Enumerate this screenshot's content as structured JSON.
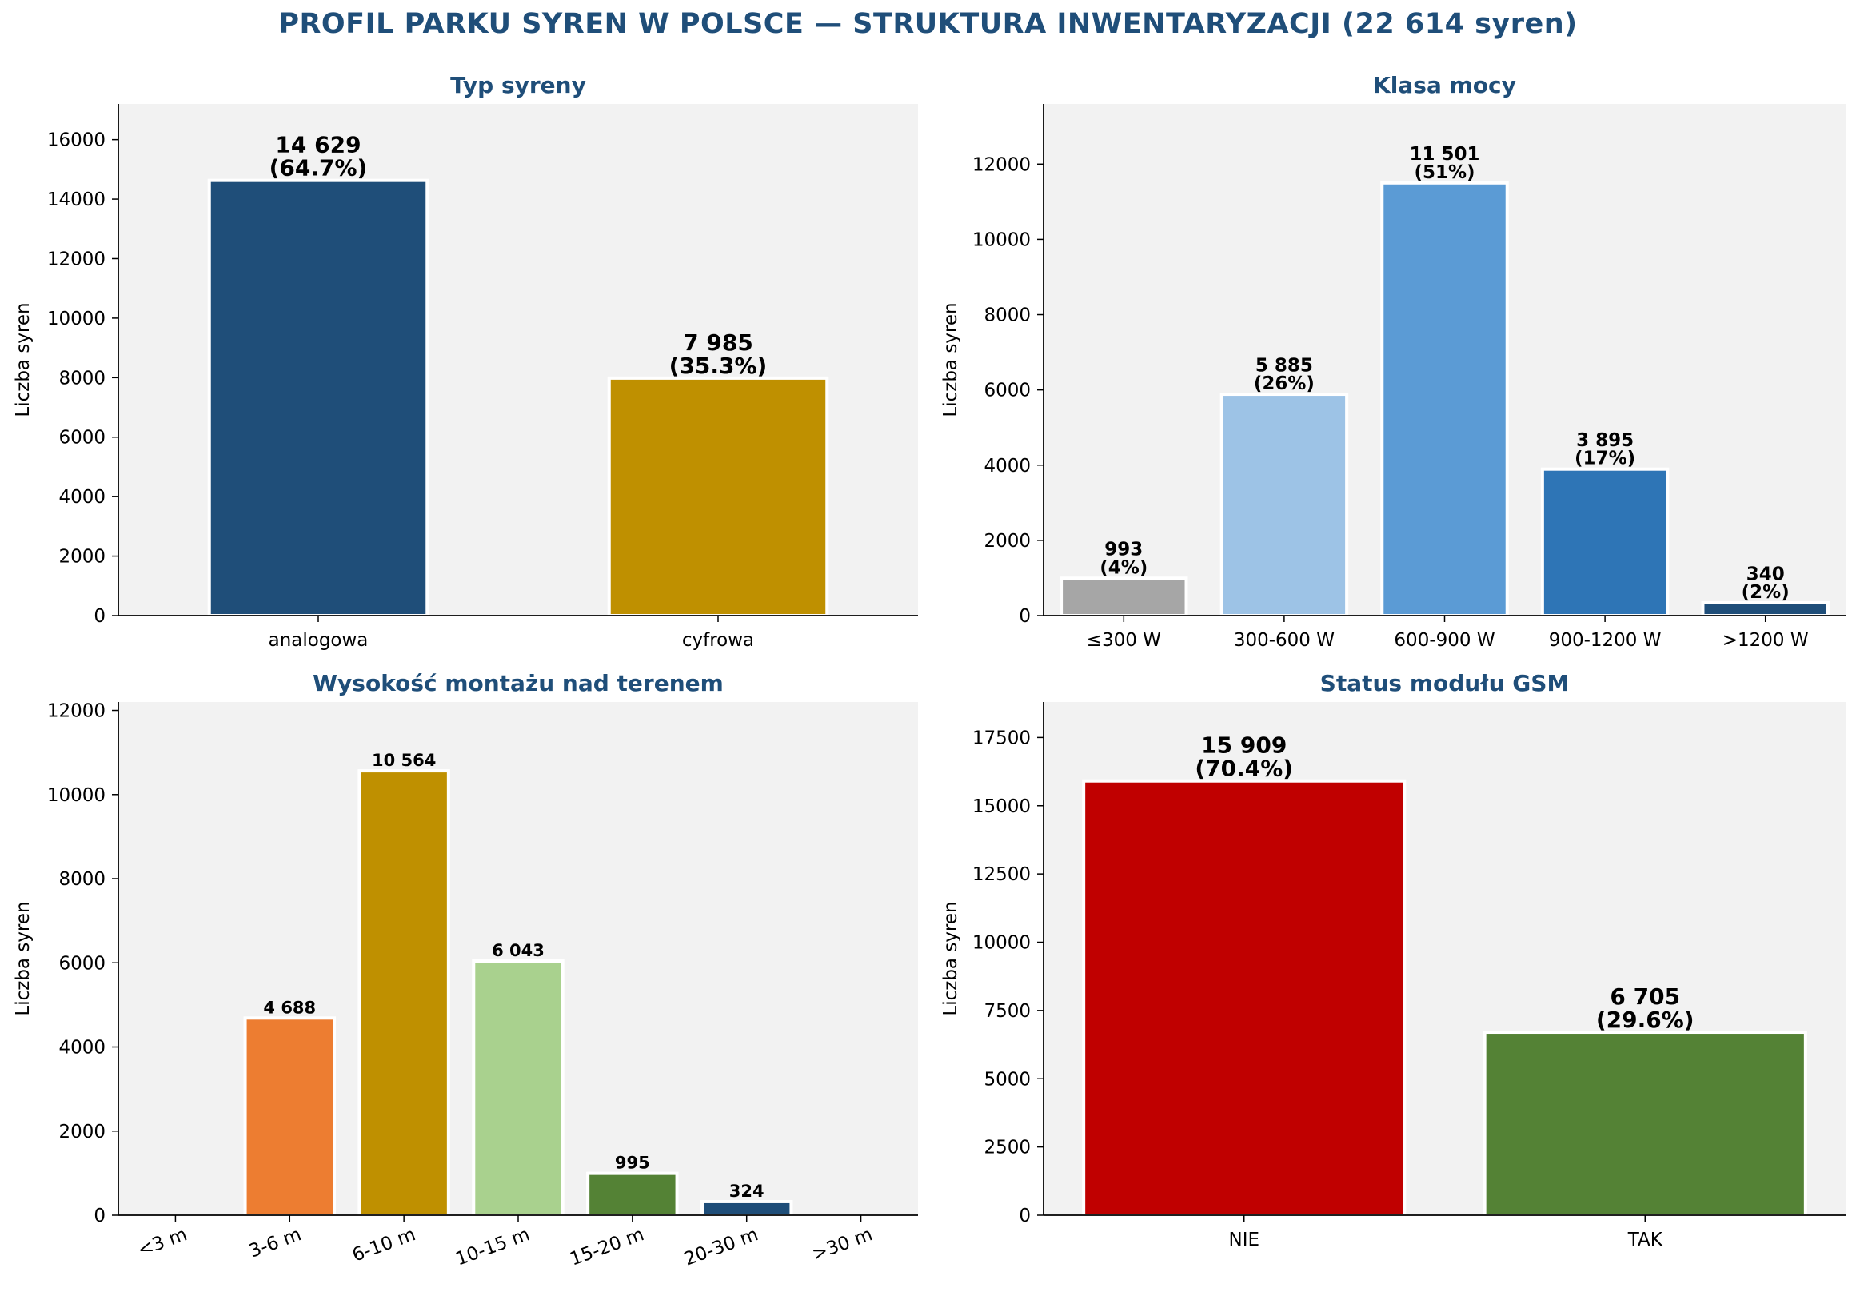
{
  "title": "PROFIL PARKU SYREN W POLSCE — STRUKTURA INWENTARYZACJI (22 614 syren)",
  "chart_data": [
    {
      "type": "bar",
      "title": "Typ syreny",
      "ylabel": "Liczba syren",
      "categories": [
        "analogowa",
        "cyfrowa"
      ],
      "values": [
        14629,
        7985
      ],
      "value_labels": [
        "14 629",
        "7 985"
      ],
      "percent_labels": [
        "(64.7%)",
        "(35.3%)"
      ],
      "colors": [
        "#1f4e79",
        "#bf9000"
      ],
      "ylim": [
        0,
        17200
      ],
      "yticks": [
        0,
        2000,
        4000,
        6000,
        8000,
        10000,
        12000,
        14000,
        16000
      ],
      "grid": false
    },
    {
      "type": "bar",
      "title": "Klasa mocy",
      "ylabel": "Liczba syren",
      "categories": [
        "≤300 W",
        "300-600 W",
        "600-900 W",
        "900-1200 W",
        ">1200 W"
      ],
      "values": [
        993,
        5885,
        11501,
        3895,
        340
      ],
      "value_labels": [
        "993",
        "5 885",
        "11 501",
        "3 895",
        "340"
      ],
      "percent_labels": [
        "(4%)",
        "(26%)",
        "(51%)",
        "(17%)",
        "(2%)"
      ],
      "colors": [
        "#a6a6a6",
        "#9dc3e6",
        "#5b9bd5",
        "#2e75b6",
        "#1f4e79"
      ],
      "ylim": [
        0,
        13600
      ],
      "yticks": [
        0,
        2000,
        4000,
        6000,
        8000,
        10000,
        12000
      ],
      "grid": false
    },
    {
      "type": "bar",
      "title": "Wysokość montażu nad terenem",
      "ylabel": "Liczba syren",
      "categories": [
        "<3 m",
        "3-6 m",
        "6-10 m",
        "10-15 m",
        "15-20 m",
        "20-30 m",
        ">30 m"
      ],
      "values": [
        0,
        4688,
        10564,
        6043,
        995,
        324,
        0
      ],
      "value_labels": [
        "",
        "4 688",
        "10 564",
        "6 043",
        "995",
        "324",
        ""
      ],
      "percent_labels": [
        "",
        "",
        "",
        "",
        "",
        "",
        ""
      ],
      "colors": [
        "#c00000",
        "#ed7d31",
        "#bf9000",
        "#a9d18e",
        "#548235",
        "#1f4e79",
        "#7030a0"
      ],
      "ylim": [
        0,
        12200
      ],
      "yticks": [
        0,
        2000,
        4000,
        6000,
        8000,
        10000,
        12000
      ],
      "grid": false
    },
    {
      "type": "bar",
      "title": "Status modułu GSM",
      "ylabel": "Liczba syren",
      "categories": [
        "NIE",
        "TAK"
      ],
      "values": [
        15909,
        6705
      ],
      "value_labels": [
        "15 909",
        "6 705"
      ],
      "percent_labels": [
        "(70.4%)",
        "(29.6%)"
      ],
      "colors": [
        "#c00000",
        "#548235"
      ],
      "ylim": [
        0,
        18800
      ],
      "yticks": [
        0,
        2500,
        5000,
        7500,
        10000,
        12500,
        15000,
        17500
      ],
      "grid": false
    }
  ]
}
